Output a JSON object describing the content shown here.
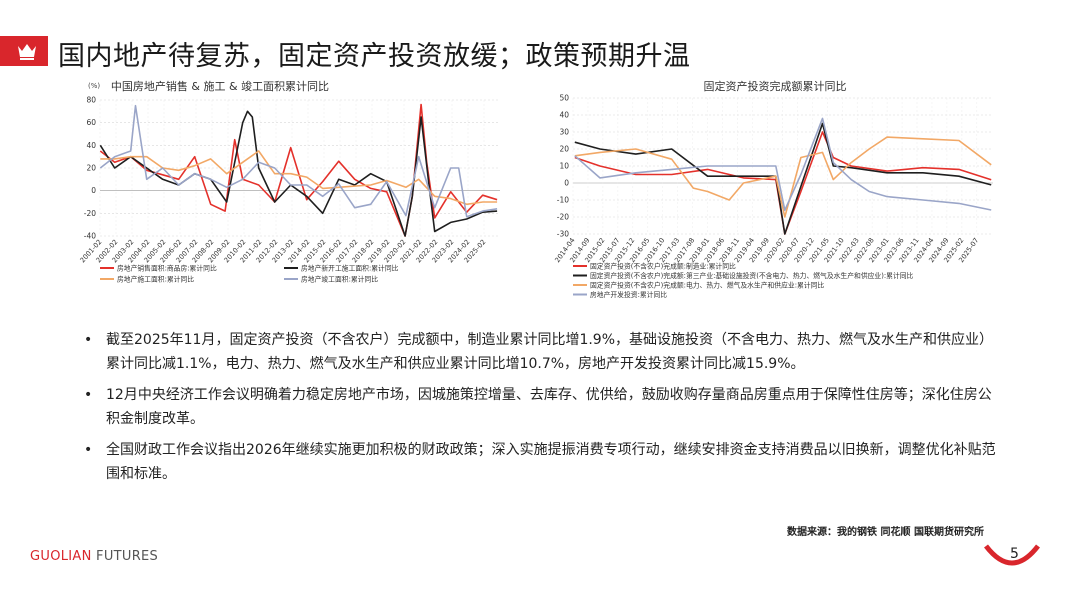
{
  "header": {
    "title": "国内地产待复苏，固定资产投资放缓；政策预期升温",
    "accent_color": "#d9262c",
    "icon": "crown-icon"
  },
  "chart_data": [
    {
      "type": "line",
      "title": "中国房地产销售 & 施工 & 竣工面积累计同比",
      "ylabel": "(%)",
      "ylim": [
        -40,
        80
      ],
      "yticks": [
        80,
        60,
        40,
        20,
        0,
        -20,
        -40
      ],
      "xticks": [
        "2001-02",
        "2002-02",
        "2003-02",
        "2004-02",
        "2005-02",
        "2006-02",
        "2007-02",
        "2008-02",
        "2009-02",
        "2010-02",
        "2011-02",
        "2012-02",
        "2013-02",
        "2014-02",
        "2015-02",
        "2016-02",
        "2017-02",
        "2018-02",
        "2019-02",
        "2020-02",
        "2021-02",
        "2022-02",
        "2023-02",
        "2024-02",
        "2025-02"
      ],
      "grid": true,
      "legend_position": "bottom",
      "series": [
        {
          "name": "房地产销售面积:商品房:累计同比",
          "color": "#e4312b",
          "x": [
            2001.1,
            2002,
            2003,
            2004,
            2005,
            2006,
            2007,
            2008,
            2008.9,
            2009.5,
            2010,
            2011,
            2012,
            2013,
            2014,
            2015,
            2016,
            2017,
            2018,
            2019,
            2020.15,
            2020.6,
            2021.15,
            2021.5,
            2022,
            2023,
            2024,
            2025,
            2025.9
          ],
          "values": [
            35,
            25,
            30,
            18,
            14,
            10,
            30,
            -12,
            -18,
            45,
            10,
            5,
            -10,
            38,
            -8,
            8,
            26,
            10,
            2,
            -1,
            -40,
            -5,
            76,
            25,
            -24,
            -1,
            -19,
            -4,
            -8
          ]
        },
        {
          "name": "房地产新开工施工面积:累计同比",
          "color": "#1f1f1f",
          "x": [
            2001.1,
            2002,
            2003,
            2004,
            2005,
            2006,
            2007,
            2008,
            2009,
            2010,
            2010.3,
            2010.6,
            2011,
            2012,
            2013,
            2014,
            2015,
            2016,
            2017,
            2018,
            2019,
            2020.15,
            2020.6,
            2021.15,
            2021.6,
            2022,
            2023,
            2024,
            2025,
            2025.9
          ],
          "values": [
            40,
            20,
            30,
            20,
            10,
            5,
            15,
            10,
            -10,
            60,
            70,
            65,
            20,
            -10,
            5,
            -5,
            -20,
            10,
            5,
            15,
            8,
            -40,
            -5,
            65,
            10,
            -36,
            -28,
            -25,
            -19,
            -18
          ]
        },
        {
          "name": "房地产施工面积:累计同比",
          "color": "#f2a866",
          "x": [
            2001.1,
            2002,
            2003,
            2004,
            2005,
            2006,
            2007,
            2008,
            2009,
            2010,
            2011,
            2012,
            2013,
            2014,
            2015,
            2016,
            2017,
            2018,
            2019,
            2020.2,
            2021,
            2022,
            2023,
            2024,
            2025,
            2025.9
          ],
          "values": [
            28,
            28,
            30,
            30,
            20,
            18,
            22,
            28,
            15,
            25,
            35,
            15,
            15,
            12,
            2,
            3,
            4,
            5,
            9,
            3,
            10,
            -5,
            -7,
            -12,
            -10,
            -10
          ]
        },
        {
          "name": "房地产竣工面积:累计同比",
          "color": "#9aa5c8",
          "x": [
            2001.1,
            2002,
            2003,
            2003.3,
            2004,
            2005,
            2006,
            2007,
            2008,
            2009,
            2010,
            2011,
            2012,
            2013,
            2014,
            2015,
            2016,
            2017,
            2018,
            2019,
            2020.2,
            2021,
            2022,
            2023,
            2023.5,
            2024,
            2025,
            2025.9
          ],
          "values": [
            20,
            30,
            35,
            75,
            10,
            20,
            5,
            15,
            10,
            3,
            10,
            25,
            20,
            5,
            5,
            -5,
            6,
            -15,
            -12,
            8,
            -22,
            30,
            -15,
            20,
            20,
            -23,
            -18,
            -16
          ]
        }
      ]
    },
    {
      "type": "line",
      "title": "固定资产投资完成额累计同比",
      "ylim": [
        -30,
        50
      ],
      "yticks": [
        50,
        40,
        30,
        20,
        10,
        0,
        -10,
        -20,
        -30
      ],
      "xticks": [
        "2014-04",
        "2014-09",
        "2015-02",
        "2015-07",
        "2015-12",
        "2016-05",
        "2016-10",
        "2017-03",
        "2017-08",
        "2018-01",
        "2018-06",
        "2018-11",
        "2019-04",
        "2019-09",
        "2020-02",
        "2020-07",
        "2020-12",
        "2021-05",
        "2021-10",
        "2022-03",
        "2022-08",
        "2023-01",
        "2023-06",
        "2023-11",
        "2024-04",
        "2024-09",
        "2025-02",
        "2025-07"
      ],
      "grid": true,
      "legend_position": "bottom",
      "series": [
        {
          "name": "固定资产投资(不含农户)完成额:制造业:累计同比",
          "color": "#e4312b",
          "x": [
            2014.3,
            2015,
            2016,
            2017,
            2018,
            2019,
            2019.9,
            2020.15,
            2020.6,
            2021.2,
            2021.5,
            2022,
            2023,
            2024,
            2025,
            2025.9
          ],
          "values": [
            15,
            10,
            5,
            5,
            8,
            3,
            2,
            -30,
            -5,
            30,
            15,
            10,
            7,
            9,
            8,
            1.9
          ]
        },
        {
          "name": "固定资产投资(不含农户)完成额:第三产业:基础设施投资(不含电力、热力、燃气及水生产和供应业):累计同比",
          "color": "#1f1f1f",
          "x": [
            2014.3,
            2015,
            2016,
            2017,
            2018,
            2019,
            2019.9,
            2020.15,
            2020.6,
            2021.2,
            2021.5,
            2022,
            2023,
            2024,
            2025,
            2025.9
          ],
          "values": [
            24,
            20,
            17,
            20,
            4,
            4,
            4,
            -30,
            -2,
            35,
            10,
            9,
            6,
            6,
            4,
            -1.1
          ]
        },
        {
          "name": "固定资产投资(不含农户)完成额:电力、热力、燃气及水生产和供应业:累计同比",
          "color": "#f2a866",
          "x": [
            2014.3,
            2015,
            2016,
            2017,
            2017.6,
            2018,
            2018.6,
            2019,
            2019.9,
            2020.15,
            2020.6,
            2021.2,
            2021.5,
            2022,
            2022.5,
            2023,
            2024,
            2025,
            2025.9
          ],
          "values": [
            16,
            18,
            20,
            14,
            -3,
            -5,
            -10,
            0,
            4,
            -20,
            15,
            18,
            2,
            12,
            20,
            27,
            26,
            25,
            10.7
          ]
        },
        {
          "name": "房地产开发投资:累计同比",
          "color": "#9aa5c8",
          "x": [
            2014.3,
            2015,
            2016,
            2017,
            2018,
            2019,
            2019.9,
            2020.15,
            2020.6,
            2021.2,
            2021.5,
            2022,
            2022.5,
            2023,
            2024,
            2025,
            2025.9
          ],
          "values": [
            16,
            3,
            6,
            8,
            10,
            10,
            10,
            -16,
            5,
            38,
            12,
            2,
            -5,
            -8,
            -10,
            -12,
            -15.9
          ]
        }
      ]
    }
  ],
  "bullets": [
    "截至2025年11月，固定资产投资（不含农户）完成额中，制造业累计同比增1.9%，基础设施投资（不含电力、热力、燃气及水生产和供应业）累计同比减1.1%，电力、热力、燃气及水生产和供应业累计同比增10.7%，房地产开发投资累计同比减15.9%。",
    "12月中央经济工作会议明确着力稳定房地产市场，因城施策控增量、去库存、优供给，鼓励收购存量商品房重点用于保障性住房等；深化住房公积金制度改革。",
    "全国财政工作会议指出2026年继续实施更加积极的财政政策；深入实施提振消费专项行动，继续安排资金支持消费品以旧换新，调整优化补贴范围和标准。"
  ],
  "bullet_marker": "•",
  "source": "数据来源：我的钢铁  同花顺  国联期货研究所",
  "footer": {
    "brand_a": "GUOLIAN",
    "brand_b": " FUTURES",
    "page_number": "5"
  }
}
